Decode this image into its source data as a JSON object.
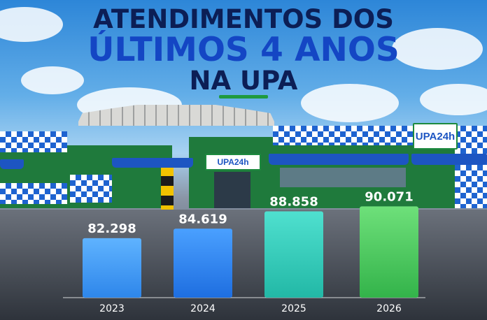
{
  "header": {
    "line1": "ATENDIMENTOS DOS",
    "line2": "ÚLTIMOS 4 ANOS",
    "line3": "NA UPA"
  },
  "signs": {
    "front": "UPA24h",
    "side": "UPA24h"
  },
  "colors": {
    "title_dark": "#0c1e55",
    "title_blue": "#1446c4",
    "accent_green": "#1f9a3f"
  },
  "chart_data": {
    "type": "bar",
    "categories": [
      "2023",
      "2024",
      "2025",
      "2026"
    ],
    "values": [
      82298,
      84619,
      88858,
      90071
    ],
    "value_labels": [
      "82.298",
      "84.619",
      "88.858",
      "90.071"
    ],
    "title": "",
    "xlabel": "",
    "ylabel": "",
    "ylim": [
      0,
      100000
    ],
    "grid": false,
    "legend": "none",
    "bar_colors": [
      [
        "#5fb3ff",
        "#2e86ea"
      ],
      [
        "#4aa0ff",
        "#1e6ee0"
      ],
      [
        "#4fe0cf",
        "#22b8a6"
      ],
      [
        "#6ee07a",
        "#33b34a"
      ]
    ]
  }
}
